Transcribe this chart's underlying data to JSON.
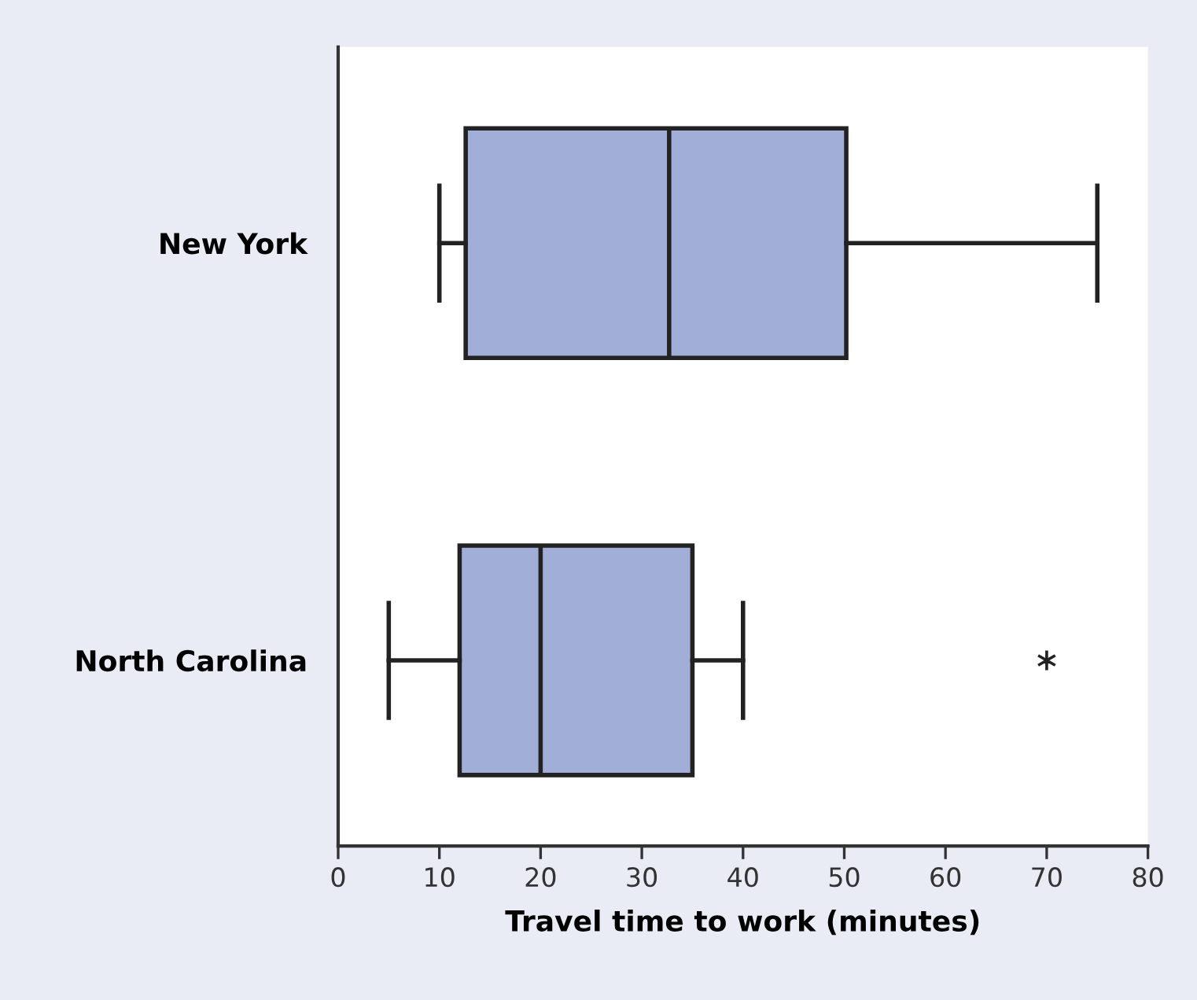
{
  "chart_data": {
    "type": "box",
    "orientation": "horizontal",
    "xlabel": "Travel time to work (minutes)",
    "categories": [
      "New York",
      "North Carolina"
    ],
    "color": "#a1aed8",
    "boxes": [
      {
        "low": 10,
        "q1": 12.6,
        "median": 32.7,
        "q3": 50.2,
        "high": 75
      },
      {
        "low": 5,
        "q1": 12,
        "median": 20,
        "q3": 35,
        "high": 40,
        "outliers": [
          70
        ]
      }
    ],
    "xlim": [
      0,
      80
    ],
    "xticks": [
      0,
      10,
      20,
      30,
      40,
      50,
      60,
      70,
      80
    ],
    "grid": false,
    "marker": "star"
  }
}
